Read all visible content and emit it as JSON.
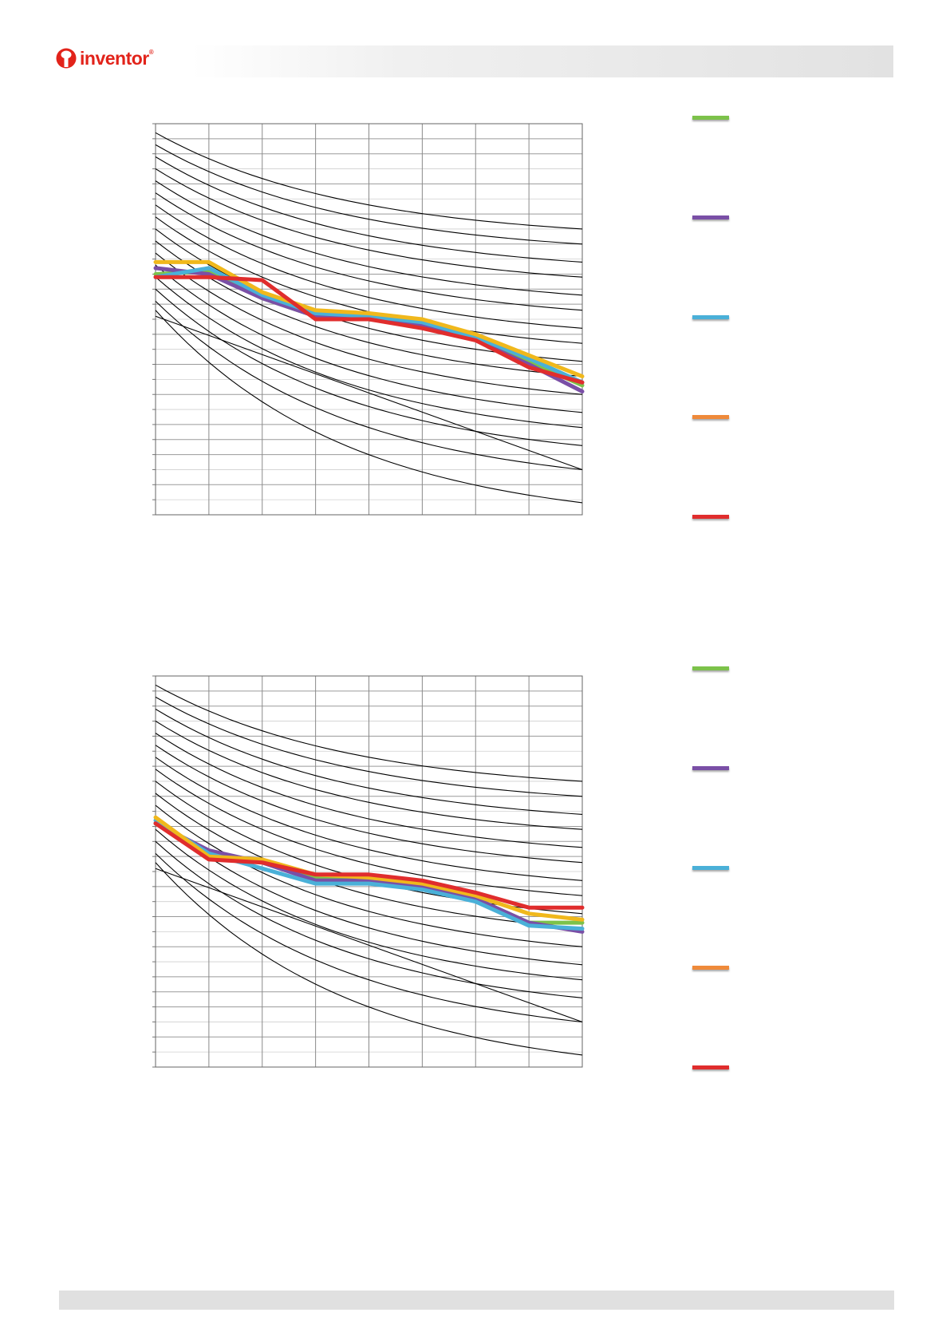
{
  "header": {
    "brand": "inventor",
    "trademark": "®"
  },
  "chart_data": [
    {
      "type": "line",
      "title": "",
      "xlabel": "",
      "ylabel": "",
      "xlim": [
        0,
        8
      ],
      "ylim": [
        0,
        13
      ],
      "grid": true,
      "legend": "right",
      "series": [
        {
          "name": "",
          "color": "#7cc24a",
          "x": [
            0,
            1,
            2,
            3,
            4,
            5,
            6,
            7,
            8
          ],
          "y": [
            8.0,
            8.1,
            7.2,
            6.6,
            6.5,
            6.3,
            5.9,
            5.1,
            4.3
          ]
        },
        {
          "name": "",
          "color": "#7a4fa6",
          "x": [
            0,
            1,
            2,
            3,
            4,
            5,
            6,
            7,
            8
          ],
          "y": [
            8.2,
            8.0,
            7.2,
            6.6,
            6.5,
            6.3,
            5.8,
            5.0,
            4.1
          ]
        },
        {
          "name": "",
          "color": "#4ab0d8",
          "x": [
            0,
            1,
            2,
            3,
            4,
            5,
            6,
            7,
            8
          ],
          "y": [
            7.9,
            8.2,
            7.3,
            6.7,
            6.6,
            6.4,
            5.9,
            5.2,
            4.4
          ]
        },
        {
          "name": "",
          "color": "#f0b81c",
          "x": [
            0,
            1,
            2,
            3,
            4,
            5,
            6,
            7,
            8
          ],
          "y": [
            8.4,
            8.4,
            7.4,
            6.8,
            6.7,
            6.5,
            6.0,
            5.3,
            4.6
          ]
        },
        {
          "name": "",
          "color": "#e02d2d",
          "x": [
            0,
            1,
            2,
            3,
            4,
            5,
            6,
            7,
            8
          ],
          "y": [
            7.9,
            7.9,
            7.8,
            6.5,
            6.5,
            6.2,
            5.8,
            4.9,
            4.4
          ]
        }
      ],
      "background_curves": {
        "color": "#000000",
        "y_at_x0": [
          12.7,
          12.3,
          11.9,
          11.5,
          11.1,
          10.7,
          10.3,
          9.9,
          9.5,
          9.1,
          8.7,
          8.3,
          7.9,
          7.5,
          7.1,
          6.8
        ],
        "y_at_x8": [
          9.5,
          9.0,
          8.4,
          7.9,
          7.3,
          6.8,
          6.2,
          5.7,
          5.1,
          4.6,
          4.0,
          3.4,
          2.9,
          2.3,
          1.5,
          0.4
        ],
        "diagonal": [
          6.6,
          1.5
        ]
      },
      "legend_swatch_colors": [
        "#7cc24a",
        "#7a4fa6",
        "#4ab0d8",
        "#ef8a3a",
        "#e02d2d"
      ]
    },
    {
      "type": "line",
      "title": "",
      "xlabel": "",
      "ylabel": "",
      "xlim": [
        0,
        8
      ],
      "ylim": [
        0,
        13
      ],
      "grid": true,
      "legend": "right",
      "series": [
        {
          "name": "",
          "color": "#7cc24a",
          "x": [
            0,
            1,
            2,
            3,
            4,
            5,
            6,
            7,
            8
          ],
          "y": [
            8.1,
            7.0,
            6.8,
            6.3,
            6.2,
            6.0,
            5.6,
            4.8,
            4.8
          ]
        },
        {
          "name": "",
          "color": "#7a4fa6",
          "x": [
            0,
            1,
            2,
            3,
            4,
            5,
            6,
            7,
            8
          ],
          "y": [
            8.1,
            7.2,
            6.8,
            6.2,
            6.2,
            6.0,
            5.6,
            4.8,
            4.5
          ]
        },
        {
          "name": "",
          "color": "#4ab0d8",
          "x": [
            0,
            1,
            2,
            3,
            4,
            5,
            6,
            7,
            8
          ],
          "y": [
            8.2,
            7.1,
            6.6,
            6.1,
            6.1,
            5.9,
            5.5,
            4.7,
            4.6
          ]
        },
        {
          "name": "",
          "color": "#f0b81c",
          "x": [
            0,
            1,
            2,
            3,
            4,
            5,
            6,
            7,
            8
          ],
          "y": [
            8.3,
            7.0,
            6.9,
            6.4,
            6.3,
            6.1,
            5.7,
            5.1,
            4.9
          ]
        },
        {
          "name": "",
          "color": "#e02d2d",
          "x": [
            0,
            1,
            2,
            3,
            4,
            5,
            6,
            7,
            8
          ],
          "y": [
            8.1,
            6.9,
            6.8,
            6.4,
            6.4,
            6.2,
            5.8,
            5.3,
            5.3
          ]
        }
      ],
      "background_curves": {
        "color": "#000000",
        "y_at_x0": [
          12.7,
          12.3,
          11.9,
          11.5,
          11.1,
          10.7,
          10.3,
          9.9,
          9.5,
          9.1,
          8.7,
          8.3,
          7.9,
          7.5,
          7.1,
          6.8
        ],
        "y_at_x8": [
          9.5,
          9.0,
          8.4,
          7.9,
          7.3,
          6.8,
          6.2,
          5.7,
          5.1,
          4.6,
          4.0,
          3.4,
          2.9,
          2.3,
          1.5,
          0.4
        ],
        "diagonal": [
          6.6,
          1.5
        ]
      },
      "legend_swatch_colors": [
        "#7cc24a",
        "#7a4fa6",
        "#4ab0d8",
        "#ef8a3a",
        "#e02d2d"
      ]
    }
  ]
}
